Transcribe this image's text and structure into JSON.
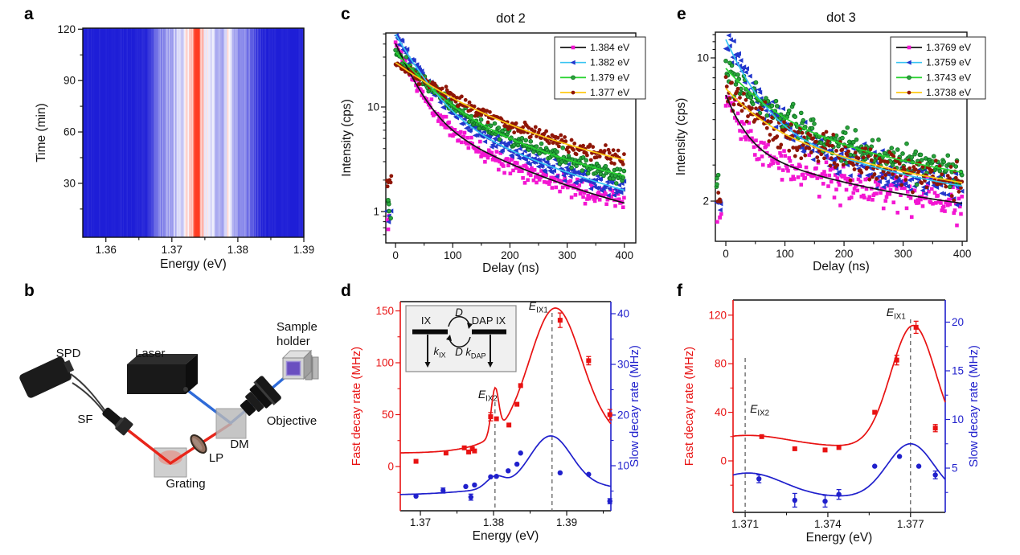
{
  "panel_letters": {
    "a": "a",
    "b": "b",
    "c": "c",
    "d": "d",
    "e": "e",
    "f": "f"
  },
  "setup_diagram": {
    "labels": {
      "spd": "SPD",
      "laser": "Laser",
      "sample_holder_line1": "Sample",
      "sample_holder_line2": "holder",
      "sf": "SF",
      "dm": "DM",
      "objective": "Objective",
      "lp": "LP",
      "grating": "Grating"
    },
    "beam_colors": {
      "excitation": "#2f6bd8",
      "emission": "#e8251a"
    }
  },
  "chart_data": [
    {
      "id": "a",
      "type": "heatmap",
      "xlabel": "Energy (eV)",
      "ylabel": "Time (min)",
      "xlim": [
        1.3565,
        1.39
      ],
      "ylim": [
        -1.5,
        120.6
      ],
      "xticks": [
        1.36,
        1.37,
        1.38,
        1.39
      ],
      "xminor": [
        1.365,
        1.375,
        1.385
      ],
      "yticks": [
        30,
        60,
        90,
        120
      ],
      "yminor": [
        15,
        45,
        75,
        105
      ],
      "colormap": {
        "low": "#1e1ed7",
        "mid": "#ffffff",
        "high": "#ff3c23"
      },
      "description": "Photoluminescence spectral time trace, stable over 120 min: bright band 1.372-1.382 eV, sharp intense line at ~1.3738 eV",
      "bands": [
        [
          1.374,
          0.0032,
          0.5
        ],
        [
          1.3735,
          0.0012,
          0.25
        ],
        [
          1.3738,
          0.00022,
          1.1
        ],
        [
          1.3785,
          0.0004,
          0.28
        ],
        [
          1.38,
          0.0013,
          0.22
        ],
        [
          1.369,
          0.0015,
          0.18
        ],
        [
          1.382,
          0.0008,
          0.12
        ]
      ],
      "noise": [
        0.08,
        0.28
      ]
    },
    {
      "id": "c",
      "type": "decay",
      "title": "dot 2",
      "xlabel": "Delay (ns)",
      "ylabel": "Intensity (cps)",
      "xlim": [
        -17,
        420
      ],
      "xticks": [
        0,
        100,
        200,
        300,
        400
      ],
      "xminor": [
        50,
        150,
        250,
        350
      ],
      "ylim": [
        0.5,
        51
      ],
      "yticks": [
        1,
        10
      ],
      "yminor": [
        0.6,
        0.7,
        0.8,
        0.9,
        2,
        3,
        4,
        5,
        6,
        7,
        8,
        9,
        20,
        30,
        40,
        50
      ],
      "series": [
        {
          "label": "1.384 eV",
          "marker": "square",
          "color": "#f316d2",
          "line": "#141414",
          "fit": {
            "A1": 32,
            "t1": 30,
            "A2": 8,
            "t2": 160,
            "C": 0.55
          },
          "pre": {
            "t": [
              -16,
              -7
            ],
            "v": [
              0.62,
              0.95
            ],
            "n": 4
          }
        },
        {
          "label": "1.382 eV",
          "marker": "triangle",
          "color": "#2236cc",
          "line": "#35c3f2",
          "fit": {
            "A1": 40,
            "t1": 40,
            "A2": 9,
            "t2": 190,
            "C": 0.5
          },
          "pre": {
            "t": [
              -16,
              -7
            ],
            "v": [
              0.7,
              1.05
            ],
            "n": 4
          }
        },
        {
          "label": "1.379 eV",
          "marker": "circle-open",
          "color": "#2aa53c",
          "line": "#27d32f",
          "fit": {
            "A1": 24,
            "t1": 55,
            "A2": 9,
            "t2": 230,
            "C": 0.6
          },
          "pre": {
            "t": [
              -16,
              -7
            ],
            "v": [
              0.85,
              1.3
            ],
            "n": 5
          }
        },
        {
          "label": "1.377 eV",
          "marker": "circle",
          "color": "#8f1607",
          "line": "#ffc913",
          "fit": {
            "A1": 16,
            "t1": 80,
            "A2": 10,
            "t2": 280,
            "C": 0.6
          },
          "pre": {
            "t": [
              -16,
              -7
            ],
            "v": [
              1.7,
              2.2
            ],
            "n": 6
          }
        }
      ]
    },
    {
      "id": "e",
      "type": "decay",
      "title": "dot 3",
      "xlabel": "Delay (ns)",
      "ylabel": "Intensity (cps)",
      "xlim": [
        -17.7,
        408
      ],
      "xticks": [
        0,
        100,
        200,
        300,
        400
      ],
      "xminor": [
        50,
        150,
        250,
        350
      ],
      "ylim": [
        1.27,
        13.4
      ],
      "yticks": [
        2,
        10
      ],
      "yminor": [
        3,
        4,
        5,
        6,
        7,
        8,
        9,
        11,
        12,
        13
      ],
      "series": [
        {
          "label": "1.3769 eV",
          "marker": "square",
          "color": "#f316d2",
          "line": "#141414",
          "fit": {
            "A1": 3.0,
            "t1": 30,
            "A2": 2.1,
            "t2": 260,
            "C": 1.5
          },
          "pre": {
            "t": [
              -16,
              -7
            ],
            "v": [
              1.55,
              1.78
            ],
            "n": 4
          }
        },
        {
          "label": "1.3759 eV",
          "marker": "triangle",
          "color": "#2236cc",
          "line": "#35c3f2",
          "fit": {
            "A1": 7.5,
            "t1": 45,
            "A2": 3.2,
            "t2": 280,
            "C": 1.6
          },
          "pre": {
            "t": [
              -16,
              -7
            ],
            "v": [
              1.7,
              2.0
            ],
            "n": 4
          }
        },
        {
          "label": "1.3743 eV",
          "marker": "circle-open",
          "color": "#2aa53c",
          "line": "#27d32f",
          "fit": {
            "A1": 4.0,
            "t1": 70,
            "A2": 3.3,
            "t2": 380,
            "C": 1.6
          },
          "pre": {
            "t": [
              -16,
              -7
            ],
            "v": [
              2.35,
              2.7
            ],
            "n": 4
          }
        },
        {
          "label": "1.3738 eV",
          "marker": "circle",
          "color": "#8f1607",
          "line": "#ffc913",
          "fit": {
            "A1": 2.6,
            "t1": 60,
            "A2": 3.0,
            "t2": 350,
            "C": 1.5
          },
          "pre": {
            "t": [
              -16,
              -7
            ],
            "v": [
              1.95,
              2.25
            ],
            "n": 5
          }
        }
      ]
    },
    {
      "id": "d",
      "type": "dual",
      "xlabel": "Energy (eV)",
      "ylabel_left": "Fast decay rate (MHz)",
      "ylabel_right": "Slow decay rate (MHz)",
      "xlim": [
        1.36725,
        1.39604
      ],
      "xticks": [
        1.37,
        1.38,
        1.39
      ],
      "xminor": [
        1.375,
        1.385,
        1.395
      ],
      "left": {
        "color": "#e81212",
        "ticks": [
          0,
          50,
          100,
          150
        ],
        "minor": [
          -25,
          25,
          75,
          125
        ],
        "points": [
          [
            1.3694,
            5,
            0
          ],
          [
            1.3735,
            13,
            0
          ],
          [
            1.376,
            18,
            0
          ],
          [
            1.3766,
            14,
            0
          ],
          [
            1.3771,
            17,
            0
          ],
          [
            1.3774,
            15,
            0
          ],
          [
            1.3796,
            48,
            4
          ],
          [
            1.3804,
            46,
            0
          ],
          [
            1.3821,
            40,
            0
          ],
          [
            1.3832,
            60,
            0
          ],
          [
            1.3837,
            78,
            0
          ],
          [
            1.3891,
            141,
            7
          ],
          [
            1.393,
            102,
            4
          ],
          [
            1.3959,
            50,
            5
          ]
        ],
        "curve": {
          "base": 13,
          "gauss": [
            [
              1.3802,
              44,
              0.0005
            ],
            [
              1.3884,
              108,
              0.0034
            ],
            [
              1.3893,
              32,
              0.0068
            ]
          ]
        }
      },
      "right": {
        "color": "#2020cc",
        "ticks": [
          10,
          20,
          30,
          40
        ],
        "minor": [
          5,
          15,
          25,
          35
        ],
        "points": [
          [
            1.3694,
            4.0,
            0
          ],
          [
            1.3731,
            5.1,
            0.5
          ],
          [
            1.3762,
            5.9,
            0
          ],
          [
            1.3769,
            3.8,
            0.6
          ],
          [
            1.3774,
            6.2,
            0
          ],
          [
            1.3796,
            7.8,
            0
          ],
          [
            1.3804,
            7.9,
            0
          ],
          [
            1.382,
            9.0,
            0
          ],
          [
            1.3832,
            10.3,
            0
          ],
          [
            1.3837,
            12.5,
            0
          ],
          [
            1.3891,
            8.6,
            0
          ],
          [
            1.393,
            8.3,
            0
          ],
          [
            1.3959,
            3.0,
            0.5
          ]
        ],
        "curve": {
          "base": 4.2,
          "gauss": [
            [
              1.3802,
              2.2,
              0.0012
            ],
            [
              1.3878,
              9.5,
              0.0028
            ],
            [
              1.389,
              2.2,
              0.009
            ]
          ]
        }
      },
      "vlines": [
        {
          "x": 1.3802,
          "label": {
            "base": "E",
            "sub": "IX2"
          }
        },
        {
          "x": 1.388,
          "label": {
            "base": "E",
            "sub": "IX1"
          }
        }
      ],
      "inset": {
        "left_level": "IX",
        "right_level": "DAP IX",
        "transfer_top": "D",
        "transfer_bottom": "D",
        "rate_left": {
          "base": "k",
          "sub": "IX"
        },
        "rate_right": {
          "base": "k",
          "sub": "DAP"
        }
      }
    },
    {
      "id": "f",
      "type": "dual",
      "xlabel": "Energy (eV)",
      "ylabel_left": "Fast decay rate (MHz)",
      "ylabel_right": "Slow decay rate (MHz)",
      "xlim": [
        1.37056,
        1.37826
      ],
      "xticks": [
        1.371,
        1.374,
        1.377
      ],
      "xminor": [
        1.3725,
        1.3755
      ],
      "left": {
        "color": "#e81212",
        "ticks": [
          0,
          40,
          80,
          120
        ],
        "minor": [
          -20,
          20,
          60,
          100
        ],
        "points": [
          [
            1.3716,
            20,
            0
          ],
          [
            1.3728,
            10,
            0
          ],
          [
            1.3739,
            9,
            0
          ],
          [
            1.3744,
            11,
            0
          ],
          [
            1.3757,
            40,
            0
          ],
          [
            1.3765,
            83,
            4
          ],
          [
            1.3772,
            110,
            5
          ],
          [
            1.3779,
            27,
            3
          ]
        ],
        "curve": {
          "base": 11.5,
          "gauss": [
            [
              1.3711,
              9.5,
              0.0015
            ],
            [
              1.3771,
              100,
              0.00082
            ]
          ]
        }
      },
      "right": {
        "color": "#2020cc",
        "ticks": [
          5,
          10,
          15,
          20
        ],
        "minor": [
          2.5,
          7.5,
          12.5,
          17.5
        ],
        "points": [
          [
            1.3715,
            3.9,
            0.4
          ],
          [
            1.3728,
            1.7,
            0.7
          ],
          [
            1.3739,
            1.6,
            0.6
          ],
          [
            1.3744,
            2.3,
            0.5
          ],
          [
            1.3757,
            5.2,
            0
          ],
          [
            1.3766,
            6.2,
            0
          ],
          [
            1.3773,
            5.2,
            0
          ],
          [
            1.3779,
            4.3,
            0.4
          ]
        ],
        "curve": {
          "base": 2.0,
          "gauss": [
            [
              1.3711,
              2.5,
              0.0013
            ],
            [
              1.377,
              5.5,
              0.00085
            ]
          ]
        }
      },
      "vlines": [
        {
          "x": 1.371,
          "label": {
            "base": "E",
            "sub": "IX2"
          }
        },
        {
          "x": 1.377,
          "label": {
            "base": "E",
            "sub": "IX1"
          }
        }
      ]
    }
  ]
}
